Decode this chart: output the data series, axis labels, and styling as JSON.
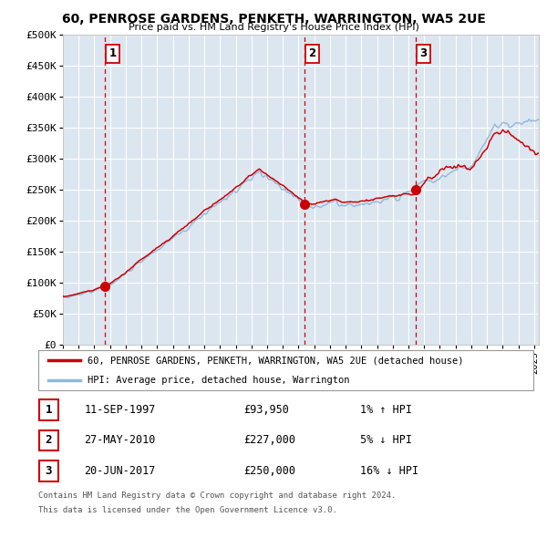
{
  "title": "60, PENROSE GARDENS, PENKETH, WARRINGTON, WA5 2UE",
  "subtitle": "Price paid vs. HM Land Registry's House Price Index (HPI)",
  "legend_line1": "60, PENROSE GARDENS, PENKETH, WARRINGTON, WA5 2UE (detached house)",
  "legend_line2": "HPI: Average price, detached house, Warrington",
  "footnote1": "Contains HM Land Registry data © Crown copyright and database right 2024.",
  "footnote2": "This data is licensed under the Open Government Licence v3.0.",
  "sale_points": [
    {
      "label": "1",
      "date": "11-SEP-1997",
      "price": 93950,
      "pct": "1%",
      "dir": "↑",
      "x_year": 1997.69
    },
    {
      "label": "2",
      "date": "27-MAY-2010",
      "price": 227000,
      "pct": "5%",
      "dir": "↓",
      "x_year": 2010.4
    },
    {
      "label": "3",
      "date": "20-JUN-2017",
      "price": 250000,
      "pct": "16%",
      "dir": "↓",
      "x_year": 2017.46
    }
  ],
  "vline_x": [
    1997.69,
    2010.4,
    2017.46
  ],
  "ylim": [
    0,
    500000
  ],
  "xlim_start": 1995.0,
  "xlim_end": 2025.3,
  "bg_color": "#dce6f0",
  "grid_color": "#ffffff",
  "red_line_color": "#cc0000",
  "blue_line_color": "#92b8d8",
  "vline_color": "#cc0000",
  "marker_color": "#cc0000",
  "yticks": [
    0,
    50000,
    100000,
    150000,
    200000,
    250000,
    300000,
    350000,
    400000,
    450000,
    500000
  ],
  "ytick_labels": [
    "£0",
    "£50K",
    "£100K",
    "£150K",
    "£200K",
    "£250K",
    "£300K",
    "£350K",
    "£400K",
    "£450K",
    "£500K"
  ],
  "xtick_years": [
    1995,
    1996,
    1997,
    1998,
    1999,
    2000,
    2001,
    2002,
    2003,
    2004,
    2005,
    2006,
    2007,
    2008,
    2009,
    2010,
    2011,
    2012,
    2013,
    2014,
    2015,
    2016,
    2017,
    2018,
    2019,
    2020,
    2021,
    2022,
    2023,
    2024,
    2025
  ]
}
